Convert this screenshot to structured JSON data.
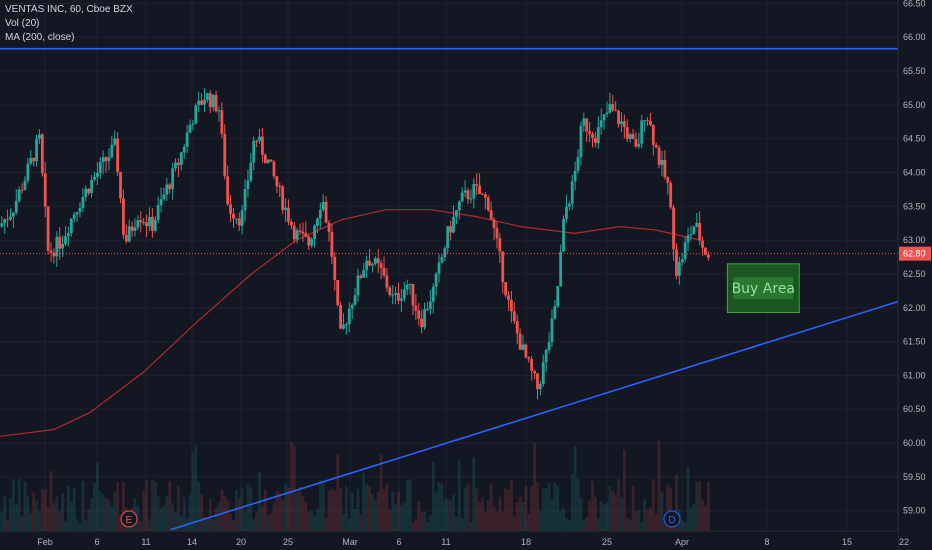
{
  "legend": {
    "symbol_line": "VENTAS INC, 60, Cboe BZX",
    "volume_line": "Vol (20)",
    "ma_line": "MA (200, close)"
  },
  "annotation": {
    "buy_area_label": "Buy Area"
  },
  "markers": {
    "earnings": "E",
    "dividend": "D"
  },
  "chart_data": {
    "type": "candlestick",
    "symbol": "VENTAS INC",
    "interval": "60",
    "exchange": "Cboe BZX",
    "indicators": [
      "Vol (20)",
      "MA (200, close)"
    ],
    "last_price_label": "62.80",
    "ylim": [
      58.7,
      66.55
    ],
    "y_ticks": [
      "66.50",
      "66.00",
      "65.50",
      "65.00",
      "64.50",
      "64.00",
      "63.50",
      "63.00",
      "62.50",
      "62.00",
      "61.50",
      "61.00",
      "60.50",
      "60.00",
      "59.50",
      "59.00"
    ],
    "x_ticks": [
      "Feb",
      "6",
      "11",
      "14",
      "20",
      "25",
      "Mar",
      "6",
      "11",
      "18",
      "25",
      "Apr",
      "8",
      "15",
      "22"
    ],
    "grid": true,
    "colors": {
      "background": "#131722",
      "grid": "#1e222d",
      "up": "#26a69a",
      "down": "#ef5350",
      "ma": "#b22833",
      "trendline": "#2962ff",
      "buy_area_fill": "#1b5e20",
      "buy_area_border": "#4caf50",
      "buy_area_text": "#8fe3a0",
      "axis_text": "#b2b5be",
      "price_line": "#ef5350"
    },
    "resistance_level": 65.83,
    "support_trendline": {
      "start": {
        "t": 0.19,
        "price": 58.72
      },
      "end": {
        "t": 1.0,
        "price": 62.25
      }
    },
    "buy_area": {
      "t_start": 0.81,
      "t_end": 0.89,
      "price_top": 62.65,
      "price_bottom": 61.93
    },
    "close_path": [
      {
        "t": 0.0,
        "p": 63.2
      },
      {
        "t": 0.015,
        "p": 63.45
      },
      {
        "t": 0.03,
        "p": 63.95
      },
      {
        "t": 0.045,
        "p": 64.5
      },
      {
        "t": 0.055,
        "p": 62.8
      },
      {
        "t": 0.07,
        "p": 63.0
      },
      {
        "t": 0.085,
        "p": 63.45
      },
      {
        "t": 0.1,
        "p": 63.8
      },
      {
        "t": 0.115,
        "p": 64.1
      },
      {
        "t": 0.13,
        "p": 64.4
      },
      {
        "t": 0.14,
        "p": 62.95
      },
      {
        "t": 0.155,
        "p": 63.4
      },
      {
        "t": 0.17,
        "p": 63.2
      },
      {
        "t": 0.185,
        "p": 63.7
      },
      {
        "t": 0.2,
        "p": 64.15
      },
      {
        "t": 0.215,
        "p": 64.8
      },
      {
        "t": 0.23,
        "p": 65.15
      },
      {
        "t": 0.245,
        "p": 64.95
      },
      {
        "t": 0.255,
        "p": 63.5
      },
      {
        "t": 0.27,
        "p": 63.3
      },
      {
        "t": 0.285,
        "p": 64.55
      },
      {
        "t": 0.3,
        "p": 64.15
      },
      {
        "t": 0.315,
        "p": 63.6
      },
      {
        "t": 0.33,
        "p": 63.1
      },
      {
        "t": 0.345,
        "p": 62.95
      },
      {
        "t": 0.36,
        "p": 63.65
      },
      {
        "t": 0.37,
        "p": 62.9
      },
      {
        "t": 0.38,
        "p": 61.55
      },
      {
        "t": 0.395,
        "p": 62.2
      },
      {
        "t": 0.41,
        "p": 62.75
      },
      {
        "t": 0.425,
        "p": 62.55
      },
      {
        "t": 0.44,
        "p": 62.1
      },
      {
        "t": 0.455,
        "p": 62.35
      },
      {
        "t": 0.47,
        "p": 61.8
      },
      {
        "t": 0.485,
        "p": 62.3
      },
      {
        "t": 0.5,
        "p": 63.1
      },
      {
        "t": 0.515,
        "p": 63.6
      },
      {
        "t": 0.53,
        "p": 63.75
      },
      {
        "t": 0.545,
        "p": 63.55
      },
      {
        "t": 0.555,
        "p": 62.9
      },
      {
        "t": 0.57,
        "p": 61.9
      },
      {
        "t": 0.585,
        "p": 61.3
      },
      {
        "t": 0.6,
        "p": 60.8
      },
      {
        "t": 0.61,
        "p": 61.35
      },
      {
        "t": 0.62,
        "p": 62.0
      },
      {
        "t": 0.63,
        "p": 63.4
      },
      {
        "t": 0.64,
        "p": 63.85
      },
      {
        "t": 0.65,
        "p": 64.75
      },
      {
        "t": 0.665,
        "p": 64.55
      },
      {
        "t": 0.68,
        "p": 64.95
      },
      {
        "t": 0.695,
        "p": 64.7
      },
      {
        "t": 0.71,
        "p": 64.3
      },
      {
        "t": 0.72,
        "p": 64.95
      },
      {
        "t": 0.735,
        "p": 64.2
      },
      {
        "t": 0.745,
        "p": 63.8
      },
      {
        "t": 0.755,
        "p": 62.5
      },
      {
        "t": 0.765,
        "p": 62.95
      },
      {
        "t": 0.775,
        "p": 63.25
      },
      {
        "t": 0.785,
        "p": 62.85
      },
      {
        "t": 0.79,
        "p": 62.8
      }
    ],
    "ma_path": [
      {
        "t": 0.0,
        "p": 60.1
      },
      {
        "t": 0.06,
        "p": 60.2
      },
      {
        "t": 0.1,
        "p": 60.45
      },
      {
        "t": 0.16,
        "p": 61.05
      },
      {
        "t": 0.22,
        "p": 61.8
      },
      {
        "t": 0.28,
        "p": 62.5
      },
      {
        "t": 0.33,
        "p": 63.0
      },
      {
        "t": 0.38,
        "p": 63.3
      },
      {
        "t": 0.43,
        "p": 63.45
      },
      {
        "t": 0.48,
        "p": 63.45
      },
      {
        "t": 0.53,
        "p": 63.35
      },
      {
        "t": 0.58,
        "p": 63.2
      },
      {
        "t": 0.64,
        "p": 63.1
      },
      {
        "t": 0.69,
        "p": 63.2
      },
      {
        "t": 0.73,
        "p": 63.15
      },
      {
        "t": 0.78,
        "p": 63.0
      }
    ]
  }
}
